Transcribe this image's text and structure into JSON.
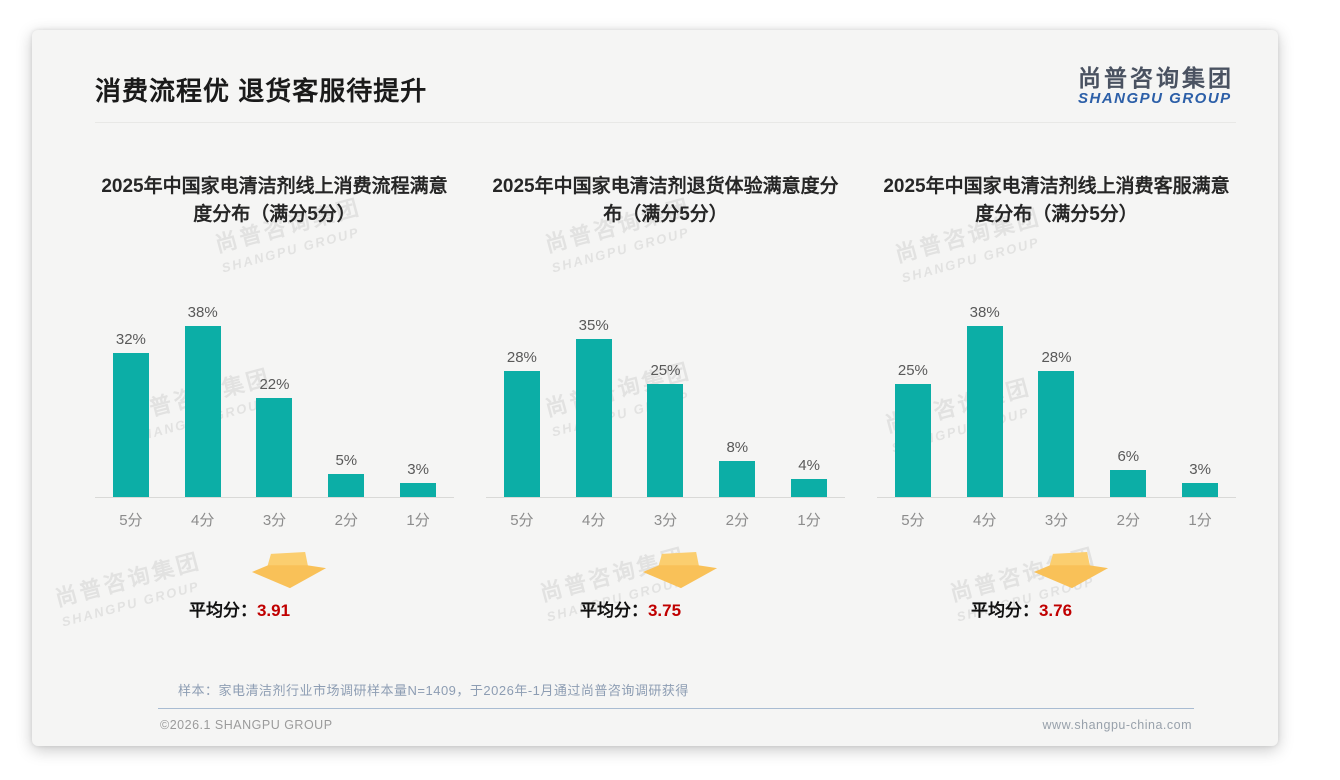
{
  "page": {
    "title": "消费流程优 退货客服待提升",
    "logo": {
      "cn": "尚普咨询集团",
      "en": "SHANGPU GROUP"
    },
    "watermark": {
      "cn": "尚普咨询集团",
      "en": "SHANGPU GROUP"
    },
    "note": "样本：家电清洁剂行业市场调研样本量N=1409，于2026年-1月通过尚普咨询调研获得",
    "footer_left": "©2026.1 SHANGPU GROUP",
    "footer_right": "www.shangpu-china.com"
  },
  "icons": {
    "average_pointer": "down-arrow"
  },
  "colors": {
    "bar": "#0CAEA6",
    "arrow_main": "#F9C158",
    "arrow_top": "#FBCE6F",
    "average_value": "#C00000",
    "logo_en": "#2C5FA8"
  },
  "chart_data": [
    {
      "type": "bar",
      "title": "2025年中国家电清洁剂线上消费流程满意度分布（满分5分）",
      "categories": [
        "5分",
        "4分",
        "3分",
        "2分",
        "1分"
      ],
      "values": [
        32,
        38,
        22,
        5,
        3
      ],
      "value_suffix": "%",
      "xlabel": "",
      "ylabel": "",
      "ylim": [
        0,
        40
      ],
      "grid": false,
      "legend": false,
      "average_label": "平均分：",
      "average": "3.91"
    },
    {
      "type": "bar",
      "title": "2025年中国家电清洁剂退货体验满意度分布（满分5分）",
      "categories": [
        "5分",
        "4分",
        "3分",
        "2分",
        "1分"
      ],
      "values": [
        28,
        35,
        25,
        8,
        4
      ],
      "value_suffix": "%",
      "xlabel": "",
      "ylabel": "",
      "ylim": [
        0,
        40
      ],
      "grid": false,
      "legend": false,
      "average_label": "平均分：",
      "average": "3.75"
    },
    {
      "type": "bar",
      "title": "2025年中国家电清洁剂线上消费客服满意度分布（满分5分）",
      "categories": [
        "5分",
        "4分",
        "3分",
        "2分",
        "1分"
      ],
      "values": [
        25,
        38,
        28,
        6,
        3
      ],
      "value_suffix": "%",
      "xlabel": "",
      "ylabel": "",
      "ylim": [
        0,
        40
      ],
      "grid": false,
      "legend": false,
      "average_label": "平均分：",
      "average": "3.76"
    }
  ]
}
